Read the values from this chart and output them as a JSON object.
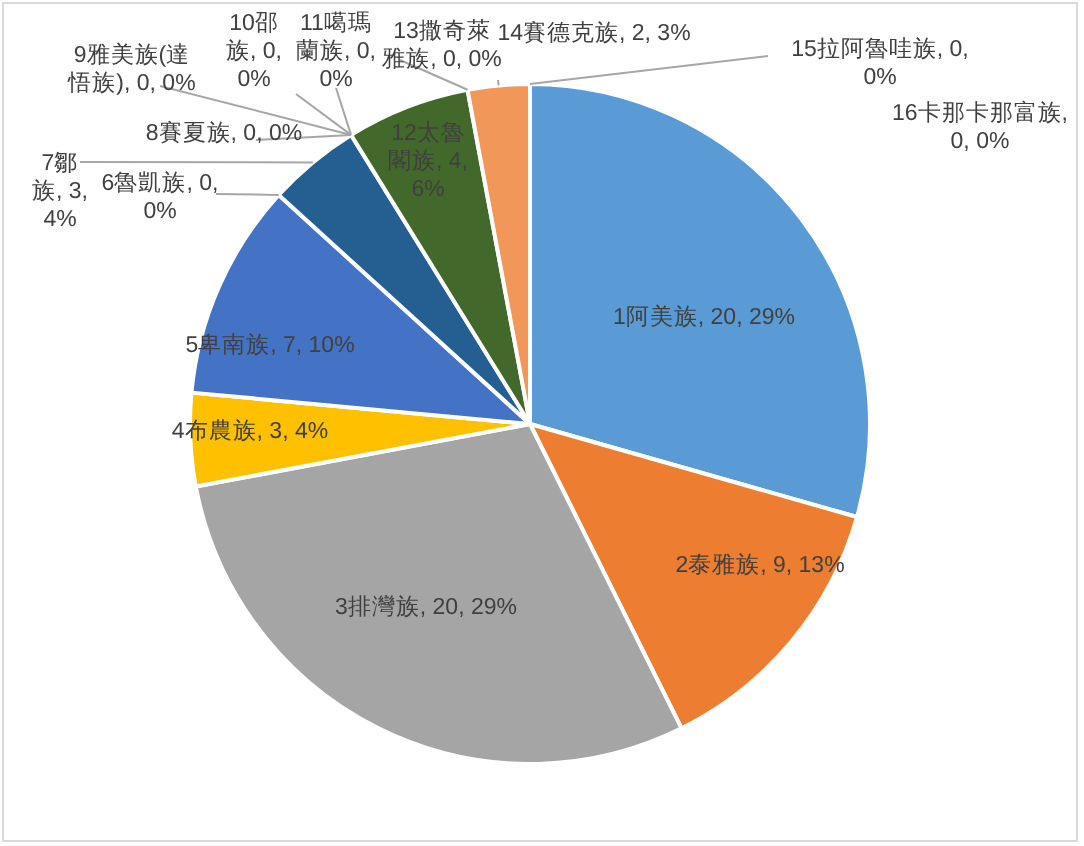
{
  "chart_data": {
    "type": "pie",
    "categories": [
      "1阿美族",
      "2泰雅族",
      "3排灣族",
      "4布農族",
      "5卑南族",
      "6魯凱族",
      "7鄒族",
      "8賽夏族",
      "9雅美族(達悟族)",
      "10邵族",
      "11噶瑪蘭族",
      "12太魯閣族",
      "13撒奇萊雅族",
      "14賽德克族",
      "15拉阿魯哇族",
      "16卡那卡那富族"
    ],
    "values": [
      20,
      9,
      20,
      3,
      7,
      0,
      3,
      0,
      0,
      0,
      0,
      4,
      0,
      2,
      0,
      0
    ],
    "value_labels": [
      ", 20, 29%",
      ", 9, 13%",
      ", 20, 29%",
      ", 3, 4%",
      ", 7, 10%",
      ", 0, 0%",
      ", 3, 4%",
      ", 0, 0%",
      ", 0, 0%",
      ", 0, 0%",
      ", 0, 0%",
      ", 4, 6%",
      ", 0, 0%",
      ", 2, 3%",
      ", 0, 0%",
      ", 0, 0%"
    ],
    "colors": [
      "#5b9bd5",
      "#ed7d31",
      "#a5a5a5",
      "#ffc000",
      "#4472c4",
      "#70ad47",
      "#255e91",
      "#9e480e",
      "#636363",
      "#997300",
      "#264478",
      "#43682b",
      "#7cafdd",
      "#f1975a",
      "#b7b7b7",
      "#ffcd33"
    ]
  }
}
